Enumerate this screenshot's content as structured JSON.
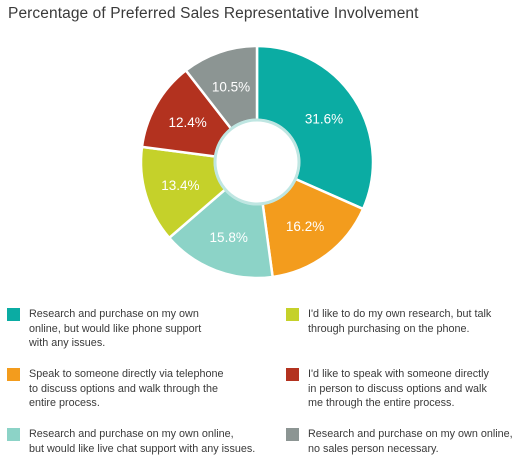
{
  "chart_data": {
    "type": "pie",
    "title": "Percentage of Preferred Sales Representative Involvement",
    "donut": true,
    "slices": [
      {
        "value": 31.6,
        "label": "31.6%",
        "color": "#0baca3",
        "legend": [
          "Research and purchase on my own",
          "online, but would like phone support",
          "with any issues."
        ]
      },
      {
        "value": 16.2,
        "label": "16.2%",
        "color": "#f39c1d",
        "legend": [
          "Speak to someone directly via telephone",
          "to discuss options and walk through the",
          "entire process."
        ]
      },
      {
        "value": 15.8,
        "label": "15.8%",
        "color": "#8cd3c7",
        "legend": [
          "Research and purchase on my own online,",
          "but would like live chat support with any issues."
        ]
      },
      {
        "value": 13.4,
        "label": "13.4%",
        "color": "#c5d12a",
        "legend": [
          "I'd like to do my own research, but talk",
          "through purchasing on the phone."
        ]
      },
      {
        "value": 12.4,
        "label": "12.4%",
        "color": "#b3321f",
        "legend": [
          "I'd like to speak with someone directly",
          "in person to discuss options and walk",
          "me through the entire process."
        ]
      },
      {
        "value": 10.5,
        "label": "10.5%",
        "color": "#8c9593",
        "legend": [
          "Research and purchase on my own online,",
          "no sales person necessary."
        ]
      }
    ],
    "legend_placement": "bottom"
  }
}
